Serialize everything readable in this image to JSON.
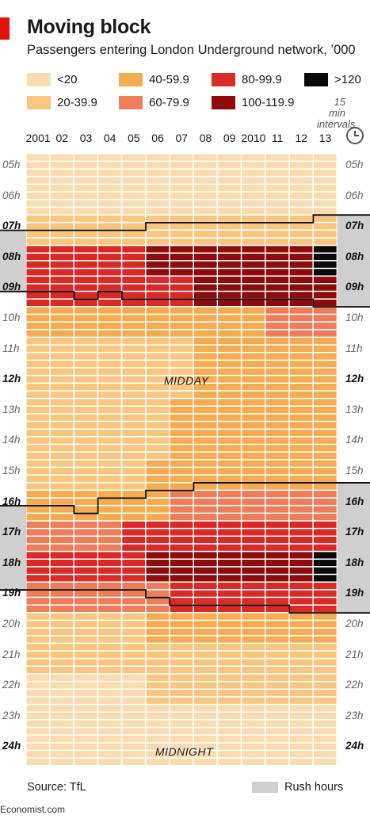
{
  "header": {
    "title": "Moving block",
    "subtitle": "Passengers entering London Underground network, ’000"
  },
  "legend": {
    "items": [
      {
        "label": "<20",
        "color": "#fbdcb0"
      },
      {
        "label": "20-39.9",
        "color": "#f9c680"
      },
      {
        "label": "40-59.9",
        "color": "#f5ab50"
      },
      {
        "label": "60-79.9",
        "color": "#ef7d5a"
      },
      {
        "label": "80-99.9",
        "color": "#db2a26"
      },
      {
        "label": "100-119.9",
        "color": "#8e0c0c"
      },
      {
        "label": ">120",
        "color": "#0a0a0a"
      }
    ],
    "interval_line1": "15 min",
    "interval_line2": "intervals"
  },
  "rush_key": {
    "label": "Rush hours",
    "color": "#cfcfcf"
  },
  "annotations": {
    "midday": "MIDDAY",
    "midnight": "MIDNIGHT"
  },
  "source": "Source: TfL",
  "footer": "Economist.com",
  "icons": [
    "clock-icon"
  ],
  "chart_data": {
    "type": "heatmap",
    "x_categories": [
      "2001",
      "02",
      "03",
      "04",
      "05",
      "06",
      "07",
      "08",
      "09",
      "2010",
      "11",
      "12",
      "13"
    ],
    "y_categories": [
      "05h",
      "06h",
      "07h",
      "08h",
      "09h",
      "10h",
      "11h",
      "12h",
      "13h",
      "14h",
      "15h",
      "16h",
      "17h",
      "18h",
      "19h",
      "20h",
      "21h",
      "22h",
      "23h",
      "24h"
    ],
    "bold_hours": [
      "07h",
      "08h",
      "09h",
      "12h",
      "16h",
      "17h",
      "18h",
      "19h",
      "24h"
    ],
    "interval_minutes": 15,
    "cells_per_hour": 4,
    "bins": [
      {
        "label": "<20",
        "color": "#fbdcb0"
      },
      {
        "label": "20-39.9",
        "color": "#f9c680"
      },
      {
        "label": "40-59.9",
        "color": "#f5ab50"
      },
      {
        "label": "60-79.9",
        "color": "#ef7d5a"
      },
      {
        "label": "80-99.9",
        "color": "#db2a26"
      },
      {
        "label": "100-119.9",
        "color": "#8e0c0c"
      },
      {
        "label": ">120",
        "color": "#0a0a0a"
      }
    ],
    "hour_bins": [
      [
        0,
        0,
        0,
        0,
        0,
        0,
        0,
        0,
        0,
        0,
        0,
        0,
        0
      ],
      [
        0,
        0,
        0,
        0,
        0,
        0,
        0,
        0,
        0,
        0,
        0,
        0,
        0
      ],
      [
        1,
        1,
        1,
        1,
        1,
        1,
        1,
        1,
        1,
        1,
        1,
        1,
        1
      ],
      [
        4,
        4,
        4,
        4,
        4,
        5,
        5,
        5,
        5,
        5,
        5,
        5,
        6
      ],
      [
        4,
        4,
        4,
        4,
        4,
        4,
        4,
        5,
        5,
        5,
        5,
        5,
        5
      ],
      [
        2,
        2,
        2,
        2,
        2,
        2,
        2,
        2,
        2,
        2,
        3,
        3,
        3
      ],
      [
        1,
        1,
        1,
        1,
        1,
        1,
        1,
        2,
        2,
        2,
        2,
        2,
        2
      ],
      [
        1,
        1,
        1,
        1,
        1,
        1,
        1,
        2,
        2,
        2,
        2,
        2,
        2
      ],
      [
        1,
        1,
        1,
        1,
        1,
        1,
        2,
        2,
        2,
        2,
        2,
        2,
        2
      ],
      [
        1,
        1,
        1,
        1,
        1,
        1,
        2,
        2,
        2,
        2,
        2,
        2,
        2
      ],
      [
        1,
        1,
        1,
        1,
        1,
        2,
        2,
        2,
        2,
        2,
        2,
        2,
        2
      ],
      [
        2,
        2,
        2,
        2,
        2,
        2,
        3,
        3,
        3,
        3,
        3,
        3,
        3
      ],
      [
        3,
        3,
        3,
        3,
        4,
        4,
        4,
        4,
        4,
        4,
        4,
        4,
        4
      ],
      [
        4,
        4,
        4,
        4,
        4,
        5,
        5,
        5,
        5,
        5,
        5,
        5,
        6
      ],
      [
        3,
        3,
        3,
        3,
        3,
        3,
        4,
        4,
        4,
        4,
        4,
        4,
        4
      ],
      [
        1,
        1,
        1,
        1,
        1,
        2,
        2,
        2,
        2,
        2,
        2,
        2,
        2
      ],
      [
        1,
        1,
        1,
        1,
        1,
        1,
        1,
        1,
        1,
        1,
        1,
        1,
        1
      ],
      [
        0,
        0,
        0,
        0,
        0,
        1,
        1,
        1,
        1,
        1,
        1,
        1,
        1
      ],
      [
        0,
        0,
        0,
        0,
        0,
        0,
        0,
        0,
        0,
        0,
        0,
        0,
        0
      ],
      [
        0,
        0,
        0,
        0,
        0,
        0,
        0,
        0,
        0,
        0,
        0,
        0,
        0
      ]
    ],
    "morning_rush_hours": {
      "start": [
        7.5,
        7.5,
        7.5,
        7.5,
        7.5,
        7.25,
        7.25,
        7.25,
        7.25,
        7.25,
        7.25,
        7.25,
        7.0
      ],
      "end": [
        9.5,
        9.5,
        9.75,
        9.5,
        9.75,
        9.75,
        9.75,
        9.75,
        9.75,
        9.75,
        9.75,
        9.75,
        10.0
      ]
    },
    "evening_rush_hours": {
      "start": [
        16.5,
        16.5,
        16.75,
        16.25,
        16.25,
        16.0,
        16.0,
        15.75,
        15.75,
        15.75,
        15.75,
        15.75,
        15.75
      ],
      "end": [
        19.25,
        19.25,
        19.25,
        19.25,
        19.25,
        19.5,
        19.75,
        19.75,
        19.75,
        19.75,
        19.75,
        20.0,
        20.0
      ]
    }
  }
}
